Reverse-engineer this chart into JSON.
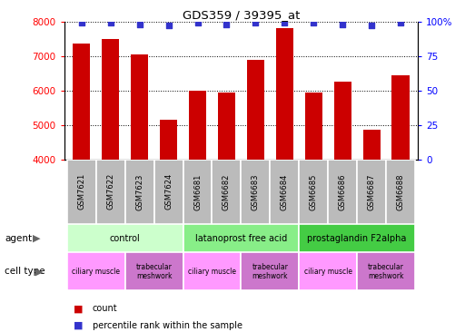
{
  "title": "GDS359 / 39395_at",
  "samples": [
    "GSM7621",
    "GSM7622",
    "GSM7623",
    "GSM7624",
    "GSM6681",
    "GSM6682",
    "GSM6683",
    "GSM6684",
    "GSM6685",
    "GSM6686",
    "GSM6687",
    "GSM6688"
  ],
  "count_values": [
    7350,
    7500,
    7050,
    5150,
    6000,
    5950,
    6900,
    7800,
    5950,
    6250,
    4850,
    6450
  ],
  "percentile_values": [
    99,
    99,
    98,
    97,
    99,
    98,
    99,
    99,
    99,
    98,
    97,
    99
  ],
  "ylim_left": [
    4000,
    8000
  ],
  "ylim_right": [
    0,
    100
  ],
  "yticks_left": [
    4000,
    5000,
    6000,
    7000,
    8000
  ],
  "yticks_right": [
    0,
    25,
    50,
    75,
    100
  ],
  "bar_color": "#cc0000",
  "dot_color": "#3333cc",
  "agents": [
    {
      "label": "control",
      "start": 0,
      "end": 4,
      "color": "#ccffcc"
    },
    {
      "label": "latanoprost free acid",
      "start": 4,
      "end": 8,
      "color": "#88ee88"
    },
    {
      "label": "prostaglandin F2alpha",
      "start": 8,
      "end": 12,
      "color": "#44cc44"
    }
  ],
  "cell_types": [
    {
      "label": "ciliary muscle",
      "start": 0,
      "end": 2,
      "color": "#ff99ff"
    },
    {
      "label": "trabecular\nmeshwork",
      "start": 2,
      "end": 4,
      "color": "#cc77cc"
    },
    {
      "label": "ciliary muscle",
      "start": 4,
      "end": 6,
      "color": "#ff99ff"
    },
    {
      "label": "trabecular\nmeshwork",
      "start": 6,
      "end": 8,
      "color": "#cc77cc"
    },
    {
      "label": "ciliary muscle",
      "start": 8,
      "end": 10,
      "color": "#ff99ff"
    },
    {
      "label": "trabecular\nmeshwork",
      "start": 10,
      "end": 12,
      "color": "#cc77cc"
    }
  ],
  "legend_count_color": "#cc0000",
  "legend_dot_color": "#3333cc",
  "sample_box_color": "#bbbbbb",
  "fig_width": 5.23,
  "fig_height": 3.66,
  "dpi": 100
}
